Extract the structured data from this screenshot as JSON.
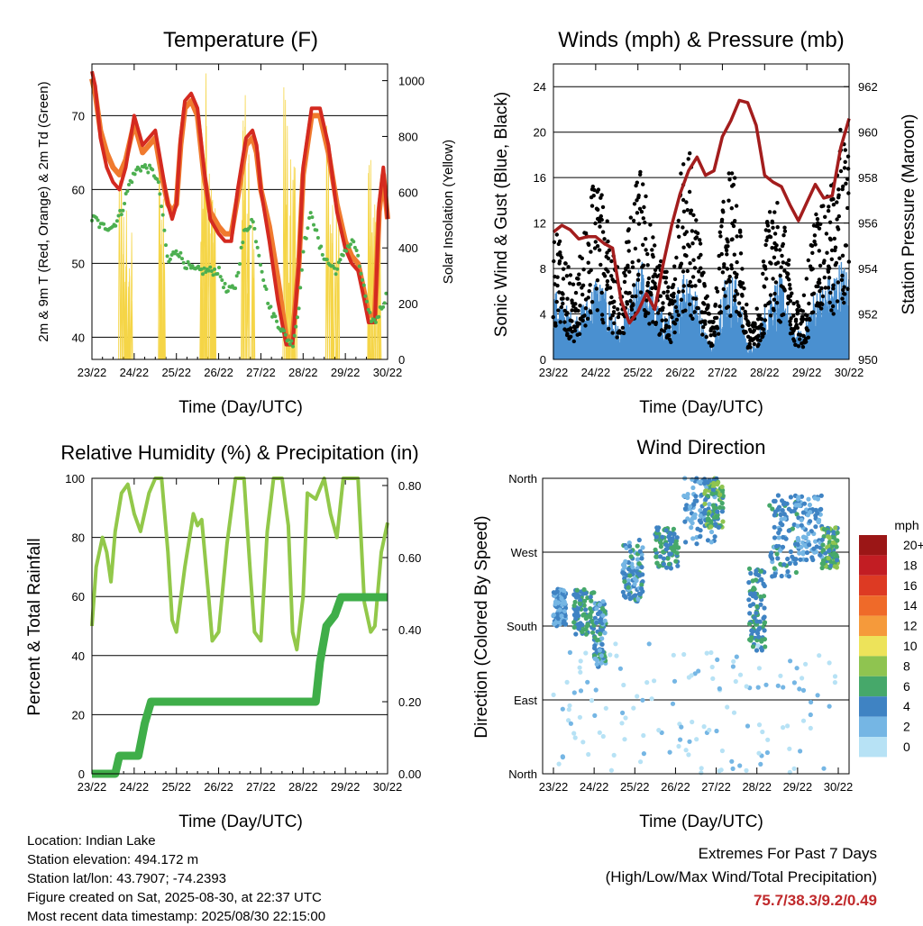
{
  "colors": {
    "red": "#d42a20",
    "orange": "#f07a2e",
    "green_td": "#4caf50",
    "yellow": "#f5d547",
    "gust": "#000000",
    "wind": "#4a90d0",
    "pressure": "#a31d1d",
    "rh": "#92c84a",
    "precip": "#3fae49"
  },
  "chart_data": [
    {
      "id": "temperature",
      "type": "line",
      "title": "Temperature (F)",
      "xlabel": "Time (Day/UTC)",
      "ylabel": "2m & 9m T (Red, Orange) & 2m Td (Green)",
      "y2label": "Solar Insolation (Yellow)",
      "x_ticks": [
        "23/22",
        "24/22",
        "25/22",
        "26/22",
        "27/22",
        "28/22",
        "29/22",
        "30/22"
      ],
      "xlim": [
        0,
        7
      ],
      "ylim": [
        37,
        77
      ],
      "y_ticks": [
        40,
        50,
        60,
        70
      ],
      "y2lim": [
        0,
        1060
      ],
      "y2_ticks": [
        0,
        200,
        400,
        600,
        800,
        1000
      ],
      "grid": true,
      "series": [
        {
          "key": "t2m",
          "color": "#d42a20",
          "x": [
            0,
            0.08,
            0.2,
            0.35,
            0.5,
            0.65,
            0.8,
            1.0,
            1.2,
            1.5,
            1.65,
            1.8,
            1.9,
            2.0,
            2.1,
            2.2,
            2.35,
            2.5,
            2.65,
            2.8,
            3.0,
            3.15,
            3.3,
            3.45,
            3.65,
            3.8,
            3.9,
            4.0,
            4.2,
            4.4,
            4.6,
            4.75,
            4.9,
            5.0,
            5.2,
            5.4,
            5.6,
            5.8,
            6.0,
            6.15,
            6.3,
            6.45,
            6.55,
            6.7,
            6.8,
            6.9,
            7.0
          ],
          "values": [
            76,
            74,
            67,
            63,
            61,
            60,
            63,
            70,
            66,
            68,
            63,
            58,
            56,
            58,
            67,
            72,
            73,
            71,
            63,
            56,
            54,
            53,
            53,
            60,
            67,
            68,
            66,
            60,
            53,
            45,
            39,
            39,
            50,
            63,
            71,
            71,
            66,
            57,
            52,
            50,
            49,
            45,
            42,
            42,
            58,
            63,
            56
          ]
        },
        {
          "key": "t9m",
          "color": "#f07a2e",
          "x": [
            0,
            0.08,
            0.2,
            0.35,
            0.5,
            0.65,
            0.8,
            1.0,
            1.2,
            1.5,
            1.65,
            1.8,
            1.9,
            2.0,
            2.1,
            2.2,
            2.35,
            2.5,
            2.65,
            2.8,
            3.0,
            3.15,
            3.3,
            3.45,
            3.65,
            3.8,
            3.9,
            4.0,
            4.2,
            4.4,
            4.6,
            4.75,
            4.9,
            5.0,
            5.2,
            5.4,
            5.6,
            5.8,
            6.0,
            6.15,
            6.3,
            6.45,
            6.55,
            6.7,
            6.8,
            6.9,
            7.0
          ],
          "values": [
            75,
            73,
            68,
            65,
            63,
            62,
            64,
            69,
            65,
            67,
            62,
            58,
            57,
            58,
            66,
            71,
            72,
            70,
            62,
            57,
            55,
            54,
            54,
            59,
            66,
            67,
            65,
            60,
            55,
            48,
            40,
            40,
            50,
            62,
            70,
            70,
            65,
            58,
            53,
            51,
            50,
            46,
            43,
            43,
            57,
            62,
            56
          ]
        },
        {
          "key": "td2m",
          "color": "#4caf50",
          "x": [
            0,
            0.1,
            0.2,
            0.35,
            0.5,
            0.7,
            0.9,
            1.1,
            1.3,
            1.5,
            1.6,
            1.7,
            1.8,
            1.9,
            2.0,
            2.2,
            2.4,
            2.6,
            2.8,
            3.0,
            3.2,
            3.4,
            3.6,
            3.8,
            4.0,
            4.2,
            4.4,
            4.6,
            4.75,
            4.9,
            5.0,
            5.2,
            5.4,
            5.6,
            5.8,
            6.0,
            6.2,
            6.4,
            6.55,
            6.7,
            6.85,
            7.0
          ],
          "values": [
            56,
            56,
            55,
            55,
            55,
            57,
            61,
            63,
            63,
            62,
            60,
            55,
            50,
            51,
            52,
            50,
            49,
            49,
            49,
            49,
            46,
            47,
            54,
            56,
            50,
            44,
            42,
            40,
            39,
            44,
            52,
            57,
            52,
            50,
            49,
            52,
            53,
            48,
            43,
            42,
            44,
            46
          ]
        },
        {
          "key": "solar",
          "color": "#f5d547",
          "peaks": [
            {
              "x": 0.68,
              "value": 700
            },
            {
              "x": 0.78,
              "value": 600
            },
            {
              "x": 0.9,
              "value": 500
            },
            {
              "x": 1.6,
              "value": 800
            },
            {
              "x": 1.7,
              "value": 600
            },
            {
              "x": 2.6,
              "value": 850
            },
            {
              "x": 2.7,
              "value": 1060
            },
            {
              "x": 2.8,
              "value": 780
            },
            {
              "x": 2.9,
              "value": 600
            },
            {
              "x": 3.6,
              "value": 950
            },
            {
              "x": 3.7,
              "value": 780
            },
            {
              "x": 3.82,
              "value": 650
            },
            {
              "x": 4.58,
              "value": 1060
            },
            {
              "x": 4.68,
              "value": 900
            },
            {
              "x": 4.8,
              "value": 700
            },
            {
              "x": 5.58,
              "value": 960
            },
            {
              "x": 5.68,
              "value": 750
            },
            {
              "x": 5.8,
              "value": 600
            },
            {
              "x": 6.58,
              "value": 720
            },
            {
              "x": 6.68,
              "value": 600
            },
            {
              "x": 6.8,
              "value": 500
            }
          ]
        }
      ]
    },
    {
      "id": "winds",
      "type": "scatter",
      "title": "Winds (mph) & Pressure (mb)",
      "xlabel": "Time (Day/UTC)",
      "ylabel": "Sonic Wind & Gust (Blue, Black)",
      "y2label": "Station Pressure (Maroon)",
      "x_ticks": [
        "23/22",
        "24/22",
        "25/22",
        "26/22",
        "27/22",
        "28/22",
        "29/22",
        "30/22"
      ],
      "xlim": [
        0,
        7
      ],
      "ylim": [
        0,
        26
      ],
      "y_ticks": [
        0,
        4,
        8,
        12,
        16,
        20,
        24
      ],
      "y2lim": [
        950,
        963
      ],
      "y2_ticks": [
        950,
        952,
        954,
        956,
        958,
        960,
        962
      ],
      "grid": true,
      "series": [
        {
          "key": "gust_envelope",
          "color": "#000000",
          "x": [
            0,
            0.5,
            0.9,
            1.0,
            1.2,
            1.6,
            1.9,
            2.1,
            2.4,
            2.8,
            3.0,
            3.2,
            3.6,
            3.8,
            4.0,
            4.3,
            4.6,
            4.8,
            5.1,
            5.4,
            5.7,
            5.9,
            6.2,
            6.6,
            6.8,
            7.0
          ],
          "values": [
            11,
            6,
            13,
            16,
            12,
            6,
            14,
            16,
            9,
            6,
            15,
            17,
            6,
            3,
            14,
            16,
            3,
            3,
            12,
            13,
            5,
            4,
            12,
            14,
            19,
            16
          ]
        },
        {
          "key": "wind_envelope",
          "color": "#4a90d0",
          "x": [
            0,
            0.5,
            0.9,
            1.0,
            1.2,
            1.6,
            1.9,
            2.1,
            2.4,
            2.8,
            3.0,
            3.2,
            3.6,
            3.8,
            4.0,
            4.3,
            4.6,
            4.8,
            5.1,
            5.4,
            5.7,
            5.9,
            6.2,
            6.6,
            6.8,
            7.0
          ],
          "values": [
            5,
            3,
            5,
            6,
            5,
            2,
            5,
            7,
            4,
            3,
            6,
            7,
            2,
            1,
            6,
            6,
            1,
            1,
            5,
            6,
            2,
            2,
            5,
            6,
            7,
            6
          ]
        },
        {
          "key": "pressure",
          "color": "#a31d1d",
          "x": [
            0,
            0.2,
            0.4,
            0.6,
            0.8,
            1.0,
            1.2,
            1.4,
            1.6,
            1.8,
            2.0,
            2.2,
            2.4,
            2.6,
            2.8,
            3.0,
            3.2,
            3.4,
            3.6,
            3.8,
            4.0,
            4.2,
            4.4,
            4.6,
            4.8,
            5.0,
            5.2,
            5.4,
            5.6,
            5.8,
            6.0,
            6.2,
            6.4,
            6.6,
            6.8,
            7.0
          ],
          "values": [
            955.6,
            955.9,
            955.7,
            955.3,
            955.4,
            955.4,
            955.1,
            954.9,
            952.6,
            951.6,
            952.1,
            952.9,
            952.2,
            954.2,
            955.9,
            957.3,
            958.3,
            958.9,
            958.1,
            958.3,
            959.8,
            960.5,
            961.4,
            961.3,
            960.3,
            958.1,
            957.8,
            957.6,
            956.8,
            956.1,
            956.9,
            957.7,
            957.1,
            957.2,
            959.3,
            960.6
          ]
        }
      ]
    },
    {
      "id": "humidity",
      "type": "line",
      "title": "Relative Humidity (%) & Precipitation (in)",
      "xlabel": "Time (Day/UTC)",
      "ylabel": "Percent & Total Rainfall",
      "x_ticks": [
        "23/22",
        "24/22",
        "25/22",
        "26/22",
        "27/22",
        "28/22",
        "29/22",
        "30/22"
      ],
      "xlim": [
        0,
        7
      ],
      "ylim": [
        0,
        100
      ],
      "y_ticks": [
        0,
        20,
        40,
        60,
        80,
        100
      ],
      "y2lim": [
        0,
        0.82
      ],
      "y2_ticks": [
        "0.00",
        "0.20",
        "0.40",
        "0.60",
        "0.80"
      ],
      "grid": true,
      "series": [
        {
          "key": "rh",
          "color": "#92c84a",
          "x": [
            0,
            0.1,
            0.25,
            0.35,
            0.45,
            0.55,
            0.7,
            0.85,
            1.0,
            1.15,
            1.35,
            1.5,
            1.65,
            1.8,
            1.9,
            2.0,
            2.2,
            2.4,
            2.5,
            2.6,
            2.75,
            2.85,
            3.0,
            3.2,
            3.4,
            3.6,
            3.75,
            3.85,
            4.0,
            4.15,
            4.3,
            4.5,
            4.65,
            4.75,
            4.85,
            5.0,
            5.1,
            5.3,
            5.5,
            5.65,
            5.8,
            5.95,
            6.1,
            6.3,
            6.45,
            6.6,
            6.7,
            6.85,
            7.0
          ],
          "values": [
            50,
            70,
            80,
            75,
            65,
            82,
            95,
            98,
            88,
            82,
            95,
            100,
            100,
            75,
            52,
            48,
            70,
            88,
            84,
            86,
            62,
            45,
            48,
            78,
            100,
            100,
            68,
            48,
            45,
            82,
            100,
            100,
            84,
            48,
            42,
            60,
            95,
            93,
            100,
            88,
            80,
            100,
            100,
            100,
            58,
            48,
            50,
            75,
            85
          ]
        },
        {
          "key": "precip_in",
          "color": "#3fae49",
          "x": [
            0,
            0.55,
            0.65,
            1.1,
            1.25,
            1.4,
            5.3,
            5.4,
            5.55,
            5.75,
            5.9,
            6.1,
            7.0
          ],
          "values": [
            0,
            0,
            0.05,
            0.05,
            0.14,
            0.2,
            0.2,
            0.31,
            0.41,
            0.44,
            0.49,
            0.49,
            0.49
          ]
        }
      ]
    },
    {
      "id": "wind_direction",
      "type": "scatter",
      "title": "Wind Direction",
      "xlabel": "Time (Day/UTC)",
      "ylabel": "Direction (Colored By Speed)",
      "x_ticks": [
        "23/22",
        "24/22",
        "25/22",
        "26/22",
        "27/22",
        "28/22",
        "29/22",
        "30/22"
      ],
      "xlim": [
        0,
        7
      ],
      "y_ticks": [
        "North",
        "West",
        "South",
        "East",
        "North"
      ],
      "ylim": [
        0,
        360
      ],
      "grid": true,
      "colorbar": {
        "title": "mph",
        "labels": [
          "20+",
          "18",
          "16",
          "14",
          "12",
          "10",
          "8",
          "6",
          "4",
          "2",
          "0"
        ],
        "colors": [
          "#9b1616",
          "#c21d23",
          "#dd3a23",
          "#ef6a29",
          "#f59a3b",
          "#ede35a",
          "#8fc450",
          "#46a86a",
          "#3f83c3",
          "#75b6e4",
          "#b7e2f5"
        ],
        "placement": "right"
      },
      "clusters": [
        {
          "x0": 0.0,
          "x1": 0.3,
          "d0": 180,
          "d1": 225,
          "speed": 3
        },
        {
          "x0": 0.5,
          "x1": 1.0,
          "d0": 170,
          "d1": 225,
          "speed": 5
        },
        {
          "x0": 1.0,
          "x1": 1.3,
          "d0": 130,
          "d1": 210,
          "speed": 4
        },
        {
          "x0": 1.7,
          "x1": 2.2,
          "d0": 210,
          "d1": 285,
          "speed": 4
        },
        {
          "x0": 2.5,
          "x1": 3.1,
          "d0": 250,
          "d1": 300,
          "speed": 5
        },
        {
          "x0": 3.2,
          "x1": 4.0,
          "d0": 280,
          "d1": 360,
          "speed": 3
        },
        {
          "x0": 3.7,
          "x1": 4.2,
          "d0": 300,
          "d1": 360,
          "speed": 6
        },
        {
          "x0": 4.8,
          "x1": 5.2,
          "d0": 150,
          "d1": 250,
          "speed": 5
        },
        {
          "x0": 5.3,
          "x1": 6.0,
          "d0": 240,
          "d1": 340,
          "speed": 4
        },
        {
          "x0": 6.0,
          "x1": 6.6,
          "d0": 260,
          "d1": 340,
          "speed": 3
        },
        {
          "x0": 6.6,
          "x1": 7.0,
          "d0": 250,
          "d1": 300,
          "speed": 6
        },
        {
          "x0": 0.0,
          "x1": 7.0,
          "d0": 0,
          "d1": 160,
          "speed": 1
        }
      ]
    }
  ],
  "footer": {
    "location": "Location: Indian Lake",
    "elevation": "Station elevation: 494.172 m",
    "latlon": "Station lat/lon: 43.7907; -74.2393",
    "created": "Figure created on Sat, 2025-08-30, at 22:37 UTC",
    "latest": "Most recent data timestamp: 2025/08/30 22:15:00"
  },
  "extremes": {
    "heading": "Extremes For Past 7 Days",
    "subheading": "(High/Low/Max Wind/Total Precipitation)",
    "value": "75.7/38.3/9.2/0.49"
  }
}
